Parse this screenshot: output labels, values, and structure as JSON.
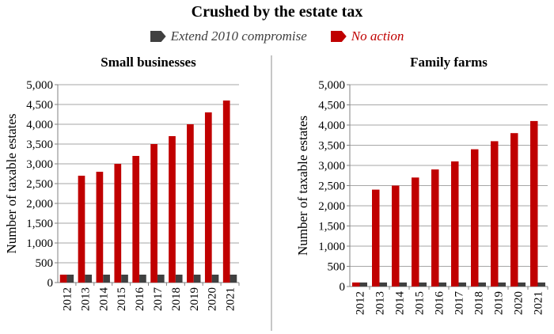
{
  "title": "Crushed by the estate tax",
  "legend": [
    {
      "label": "Extend 2010 compromise",
      "color": "#404040"
    },
    {
      "label": "No action",
      "color": "#c00000"
    }
  ],
  "chart_data": [
    {
      "type": "bar",
      "title": "Small businesses",
      "ylabel": "Number of taxable estates",
      "xlabel": "",
      "ylim": [
        0,
        5000
      ],
      "yticks": [
        "0",
        "500",
        "1,000",
        "1,500",
        "2,000",
        "2,500",
        "3,000",
        "3,500",
        "4,000",
        "4,500",
        "5,000"
      ],
      "categories": [
        "2012",
        "2013",
        "2014",
        "2015",
        "2016",
        "2017",
        "2018",
        "2019",
        "2020",
        "2021"
      ],
      "series": [
        {
          "name": "No action",
          "color": "#c00000",
          "values": [
            200,
            2700,
            2800,
            3000,
            3200,
            3500,
            3700,
            4000,
            4300,
            4600
          ]
        },
        {
          "name": "Extend 2010 compromise",
          "color": "#404040",
          "values": [
            200,
            200,
            200,
            200,
            200,
            200,
            200,
            200,
            200,
            200
          ]
        }
      ]
    },
    {
      "type": "bar",
      "title": "Family farms",
      "ylabel": "Number of taxable estates",
      "xlabel": "",
      "ylim": [
        0,
        5000
      ],
      "yticks": [
        "0",
        "500",
        "1,000",
        "1,500",
        "2,000",
        "2,500",
        "3,000",
        "3,500",
        "4,000",
        "4,500",
        "5,000"
      ],
      "categories": [
        "2012",
        "2013",
        "2014",
        "2015",
        "2016",
        "2017",
        "2018",
        "2019",
        "2020",
        "2021"
      ],
      "series": [
        {
          "name": "No action",
          "color": "#c00000",
          "values": [
            100,
            2400,
            2500,
            2700,
            2900,
            3100,
            3400,
            3600,
            3800,
            4100
          ]
        },
        {
          "name": "Extend 2010 compromise",
          "color": "#404040",
          "values": [
            100,
            100,
            100,
            100,
            100,
            100,
            100,
            100,
            100,
            100
          ]
        }
      ]
    }
  ]
}
